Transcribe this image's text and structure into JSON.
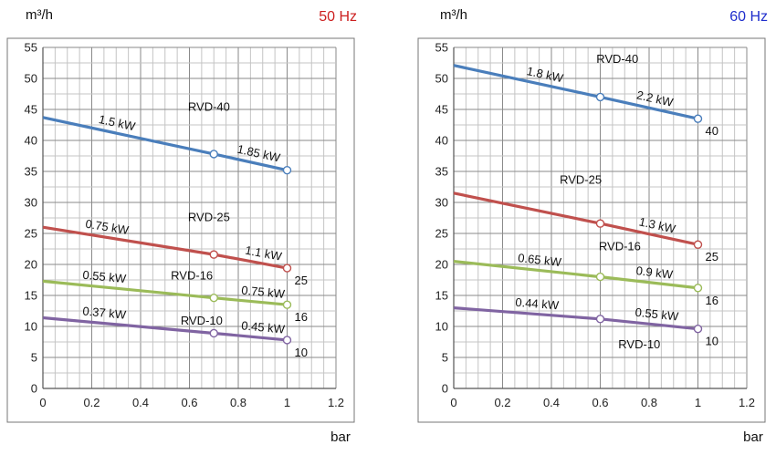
{
  "chart_data": [
    {
      "type": "line",
      "ylabel": "m³/h",
      "xlabel": "bar",
      "frequency_label": "50 Hz",
      "frequency_color": "#cc1f1f",
      "xlim": [
        0,
        1.2
      ],
      "ylim": [
        0,
        55
      ],
      "x_ticks": [
        "0",
        "0.2",
        "0.4",
        "0.6",
        "0.8",
        "1",
        "1.2"
      ],
      "y_ticks": [
        "0",
        "5",
        "10",
        "15",
        "20",
        "25",
        "30",
        "35",
        "40",
        "45",
        "50",
        "55"
      ],
      "grid": true,
      "series": [
        {
          "name": "RVD-40",
          "color": "#4a7ebb",
          "end_label": "",
          "x": [
            0,
            0.7,
            1.0
          ],
          "y": [
            43.7,
            37.8,
            35.2
          ],
          "power_labels": [
            {
              "text": "1.5 kW",
              "x": 0.3
            },
            {
              "text": "1.85 kW",
              "x": 0.88
            }
          ],
          "markers": [
            {
              "x": 0.7,
              "y": 37.8
            },
            {
              "x": 1.0,
              "y": 35.2
            }
          ]
        },
        {
          "name": "RVD-25",
          "color": "#c0504d",
          "end_label": "25",
          "x": [
            0,
            0.7,
            1.0
          ],
          "y": [
            26.0,
            21.6,
            19.4
          ],
          "power_labels": [
            {
              "text": "0.75 kW",
              "x": 0.26
            },
            {
              "text": "1.1 kW",
              "x": 0.9
            }
          ],
          "markers": [
            {
              "x": 0.7,
              "y": 21.6
            },
            {
              "x": 1.0,
              "y": 19.4
            }
          ]
        },
        {
          "name": "RVD-16",
          "color": "#9bbb59",
          "end_label": "16",
          "x": [
            0,
            0.7,
            1.0
          ],
          "y": [
            17.3,
            14.6,
            13.5
          ],
          "power_labels": [
            {
              "text": "0.55 kW",
              "x": 0.25
            },
            {
              "text": "0.75 kW",
              "x": 0.9
            }
          ],
          "markers": [
            {
              "x": 0.7,
              "y": 14.6
            },
            {
              "x": 1.0,
              "y": 13.5
            }
          ]
        },
        {
          "name": "RVD-10",
          "color": "#8064a2",
          "end_label": "10",
          "x": [
            0,
            0.7,
            1.0
          ],
          "y": [
            11.4,
            8.9,
            7.8
          ],
          "power_labels": [
            {
              "text": "0.37 kW",
              "x": 0.25
            },
            {
              "text": "0.45 kW",
              "x": 0.9
            }
          ],
          "markers": [
            {
              "x": 0.7,
              "y": 8.9
            },
            {
              "x": 1.0,
              "y": 7.8
            }
          ]
        }
      ],
      "model_labels": [
        {
          "text": "RVD-40",
          "x": 0.68,
          "y": 44.8
        },
        {
          "text": "RVD-25",
          "x": 0.68,
          "y": 27.0
        },
        {
          "text": "RVD-16",
          "x": 0.61,
          "y": 17.6
        },
        {
          "text": "RVD-10",
          "x": 0.65,
          "y": 10.3
        }
      ]
    },
    {
      "type": "line",
      "ylabel": "m³/h",
      "xlabel": "bar",
      "frequency_label": "60 Hz",
      "frequency_color": "#1f2ecc",
      "xlim": [
        0,
        1.2
      ],
      "ylim": [
        0,
        55
      ],
      "x_ticks": [
        "0",
        "0.2",
        "0.4",
        "0.6",
        "0.8",
        "1",
        "1.2"
      ],
      "y_ticks": [
        "0",
        "5",
        "10",
        "15",
        "20",
        "25",
        "30",
        "35",
        "40",
        "45",
        "50",
        "55"
      ],
      "grid": true,
      "series": [
        {
          "name": "RVD-40",
          "color": "#4a7ebb",
          "end_label": "40",
          "x": [
            0,
            0.6,
            1.0
          ],
          "y": [
            52.1,
            47.0,
            43.5
          ],
          "power_labels": [
            {
              "text": "1.8 kW",
              "x": 0.37
            },
            {
              "text": "2.2 kW",
              "x": 0.82
            }
          ],
          "markers": [
            {
              "x": 0.6,
              "y": 47.0
            },
            {
              "x": 1.0,
              "y": 43.5
            }
          ]
        },
        {
          "name": "RVD-25",
          "color": "#c0504d",
          "end_label": "25",
          "x": [
            0,
            0.6,
            1.0
          ],
          "y": [
            31.5,
            26.6,
            23.2
          ],
          "power_labels": [
            {
              "text": "1.3 kW",
              "x": 0.83
            }
          ],
          "markers": [
            {
              "x": 0.6,
              "y": 26.6
            },
            {
              "x": 1.0,
              "y": 23.2
            }
          ]
        },
        {
          "name": "RVD-16",
          "color": "#9bbb59",
          "end_label": "16",
          "x": [
            0,
            0.6,
            1.0
          ],
          "y": [
            20.5,
            18.0,
            16.2
          ],
          "power_labels": [
            {
              "text": "0.65 kW",
              "x": 0.35
            },
            {
              "text": "0.9 kW",
              "x": 0.82
            }
          ],
          "markers": [
            {
              "x": 0.6,
              "y": 18.0
            },
            {
              "x": 1.0,
              "y": 16.2
            }
          ]
        },
        {
          "name": "RVD-10",
          "color": "#8064a2",
          "end_label": "10",
          "x": [
            0,
            0.6,
            1.0
          ],
          "y": [
            13.0,
            11.2,
            9.6
          ],
          "power_labels": [
            {
              "text": "0.44 kW",
              "x": 0.34
            },
            {
              "text": "0.55 kW",
              "x": 0.83
            }
          ],
          "markers": [
            {
              "x": 0.6,
              "y": 11.2
            },
            {
              "x": 1.0,
              "y": 9.6
            }
          ]
        }
      ],
      "model_labels": [
        {
          "text": "RVD-40",
          "x": 0.67,
          "y": 52.5
        },
        {
          "text": "RVD-25",
          "x": 0.52,
          "y": 33.0
        },
        {
          "text": "RVD-16",
          "x": 0.68,
          "y": 22.3
        },
        {
          "text": "RVD-10",
          "x": 0.76,
          "y": 6.5
        }
      ]
    }
  ]
}
